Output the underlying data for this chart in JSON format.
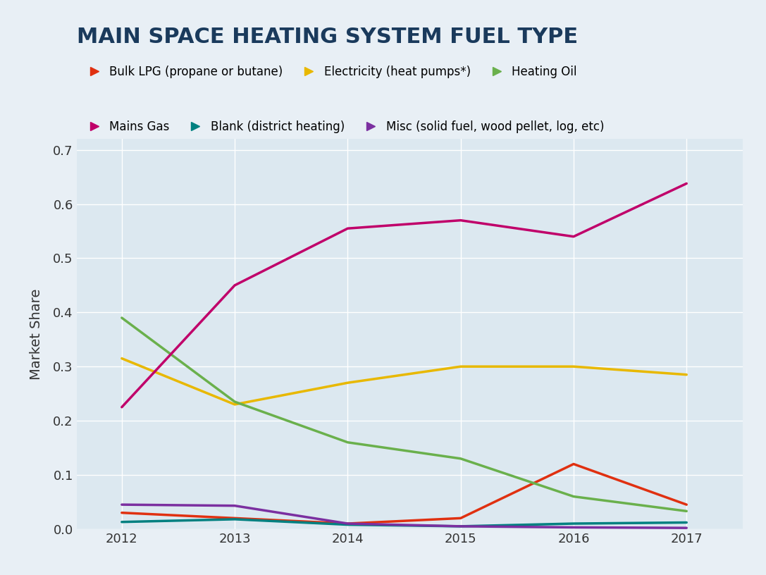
{
  "title": "MAIN SPACE HEATING SYSTEM FUEL TYPE",
  "ylabel": "Market Share",
  "background_color": "#e8eff5",
  "plot_background": "#dce8f0",
  "title_color": "#1a3a5c",
  "years": [
    2012,
    2013,
    2014,
    2015,
    2016,
    2017
  ],
  "series": [
    {
      "label": "Bulk LPG (propane or butane)",
      "color": "#e03010",
      "values": [
        0.03,
        0.02,
        0.01,
        0.02,
        0.12,
        0.045
      ]
    },
    {
      "label": "Electricity (heat pumps*)",
      "color": "#e8b800",
      "values": [
        0.315,
        0.23,
        0.27,
        0.3,
        0.3,
        0.285
      ]
    },
    {
      "label": "Heating Oil",
      "color": "#6ab04c",
      "values": [
        0.39,
        0.235,
        0.16,
        0.13,
        0.06,
        0.033
      ]
    },
    {
      "label": "Mains Gas",
      "color": "#c0006a",
      "values": [
        0.225,
        0.45,
        0.555,
        0.57,
        0.54,
        0.638
      ]
    },
    {
      "label": "Blank (district heating)",
      "color": "#008080",
      "values": [
        0.013,
        0.018,
        0.008,
        0.005,
        0.01,
        0.012
      ]
    },
    {
      "label": "Misc (solid fuel, wood pellet, log, etc)",
      "color": "#7b2fa0",
      "values": [
        0.045,
        0.043,
        0.01,
        0.005,
        0.003,
        0.002
      ]
    }
  ],
  "ylim": [
    0,
    0.72
  ],
  "yticks": [
    0.0,
    0.1,
    0.2,
    0.3,
    0.4,
    0.5,
    0.6,
    0.7
  ],
  "linewidth": 2.5,
  "title_fontsize": 22,
  "legend_fontsize": 12,
  "tick_fontsize": 13,
  "ylabel_fontsize": 14
}
